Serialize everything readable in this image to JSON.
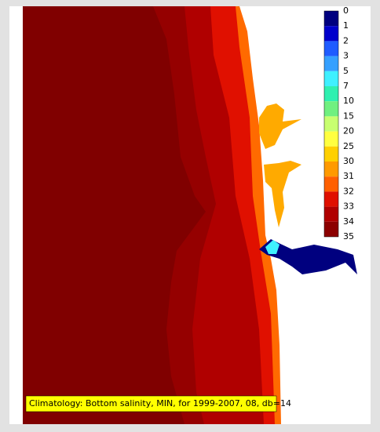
{
  "legend": {
    "items": [
      {
        "label": "0",
        "color": "#00007f"
      },
      {
        "label": "1",
        "color": "#0000cc"
      },
      {
        "label": "2",
        "color": "#1f5cff"
      },
      {
        "label": "3",
        "color": "#35a0ff"
      },
      {
        "label": "5",
        "color": "#3ff0ff"
      },
      {
        "label": "7",
        "color": "#2ff0b0"
      },
      {
        "label": "10",
        "color": "#70f080"
      },
      {
        "label": "15",
        "color": "#c8ff70"
      },
      {
        "label": "20",
        "color": "#ffff40"
      },
      {
        "label": "25",
        "color": "#ffd000"
      },
      {
        "label": "30",
        "color": "#ff9a00"
      },
      {
        "label": "31",
        "color": "#ff6000"
      },
      {
        "label": "32",
        "color": "#e01000"
      },
      {
        "label": "33",
        "color": "#b00000"
      },
      {
        "label": "34",
        "color": "#8c0000"
      },
      {
        "label": "35",
        "color": "#7a0000"
      }
    ]
  },
  "caption": "Climatology: Bottom salinity, MIN, for 1999-2007, 08, db=14"
}
